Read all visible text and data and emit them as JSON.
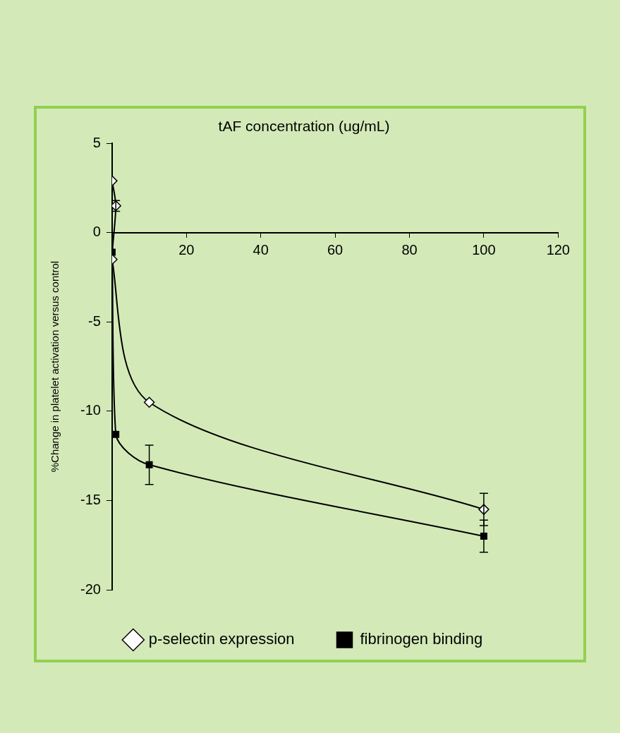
{
  "chart_data": {
    "type": "line",
    "xlabel": "tAF concentration (ug/mL)",
    "ylabel": "%Change in platelet activation versus control",
    "xlim": [
      0,
      120
    ],
    "xticks": [
      {
        "value": 0,
        "label": null
      },
      20,
      40,
      60,
      80,
      100,
      120
    ],
    "ylim": [
      -20,
      5
    ],
    "yticks": [
      -20,
      -15,
      -10,
      -5,
      0,
      5
    ],
    "grid": false,
    "legend": "bottom",
    "line_style": "solid",
    "series": [
      {
        "name": "p-selectin expression",
        "color": "#000000",
        "marker": "diamond",
        "x": [
          0,
          1,
          0,
          10,
          100
        ],
        "values": [
          2.9,
          1.5,
          -1.5,
          -9.5,
          -15.5
        ],
        "errors": [
          null,
          0.3,
          null,
          null,
          0.9
        ]
      },
      {
        "name": "fibrinogen binding",
        "color": "#000000",
        "marker": "square",
        "x": [
          0,
          1,
          10,
          100
        ],
        "values": [
          -1.1,
          -11.3,
          -13.0,
          -17.0
        ],
        "errors": [
          null,
          null,
          1.1,
          0.9
        ]
      }
    ]
  }
}
